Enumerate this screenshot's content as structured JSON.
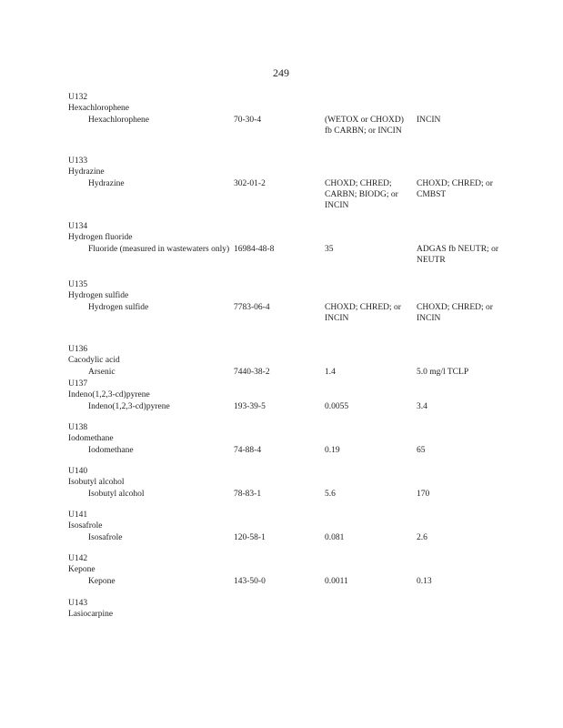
{
  "page_number": "249",
  "entries": [
    {
      "code": "U132",
      "name": "Hexachlorophene",
      "constituent": "Hexachlorophene",
      "cas": "70-30-4",
      "wastewater": "(WETOX or CHOXD) fb CARBN; or INCIN",
      "nonwastewater": "INCIN"
    },
    {
      "code": "U133",
      "name": "Hydrazine",
      "constituent": "Hydrazine",
      "cas": "302-01-2",
      "wastewater": "CHOXD; CHRED; CARBN; BIODG; or INCIN",
      "nonwastewater": "CHOXD; CHRED; or CMBST"
    },
    {
      "code": "U134",
      "name": "Hydrogen fluoride",
      "constituent": "Fluoride (measured in wastewaters only)",
      "cas": "16984-48-8",
      "wastewater": "35",
      "nonwastewater": "ADGAS fb NEUTR; or NEUTR"
    },
    {
      "code": "U135",
      "name": "Hydrogen sulfide",
      "constituent": "Hydrogen sulfide",
      "cas": "7783-06-4",
      "wastewater": "CHOXD; CHRED; or INCIN",
      "nonwastewater": "CHOXD; CHRED; or INCIN"
    },
    {
      "code": "U136",
      "name": "Cacodylic acid",
      "constituent": "Arsenic",
      "cas": "7440-38-2",
      "wastewater": "1.4",
      "nonwastewater": "5.0 mg/l TCLP"
    },
    {
      "code": "U137",
      "name": "Indeno(1,2,3-cd)pyrene",
      "constituent": "Indeno(1,2,3-cd)pyrene",
      "cas": "193-39-5",
      "wastewater": "0.0055",
      "nonwastewater": "3.4"
    },
    {
      "code": "U138",
      "name": "Iodomethane",
      "constituent": "Iodomethane",
      "cas": "74-88-4",
      "wastewater": "0.19",
      "nonwastewater": "65"
    },
    {
      "code": "U140",
      "name": "Isobutyl alcohol",
      "constituent": "Isobutyl alcohol",
      "cas": "78-83-1",
      "wastewater": "5.6",
      "nonwastewater": "170"
    },
    {
      "code": "U141",
      "name": "Isosafrole",
      "constituent": "Isosafrole",
      "cas": "120-58-1",
      "wastewater": "0.081",
      "nonwastewater": "2.6"
    },
    {
      "code": "U142",
      "name": "Kepone",
      "constituent": "Kepone",
      "cas": "143-50-0",
      "wastewater": "0.0011",
      "nonwastewater": "0.13"
    },
    {
      "code": "U143",
      "name": "Lasiocarpine"
    }
  ]
}
